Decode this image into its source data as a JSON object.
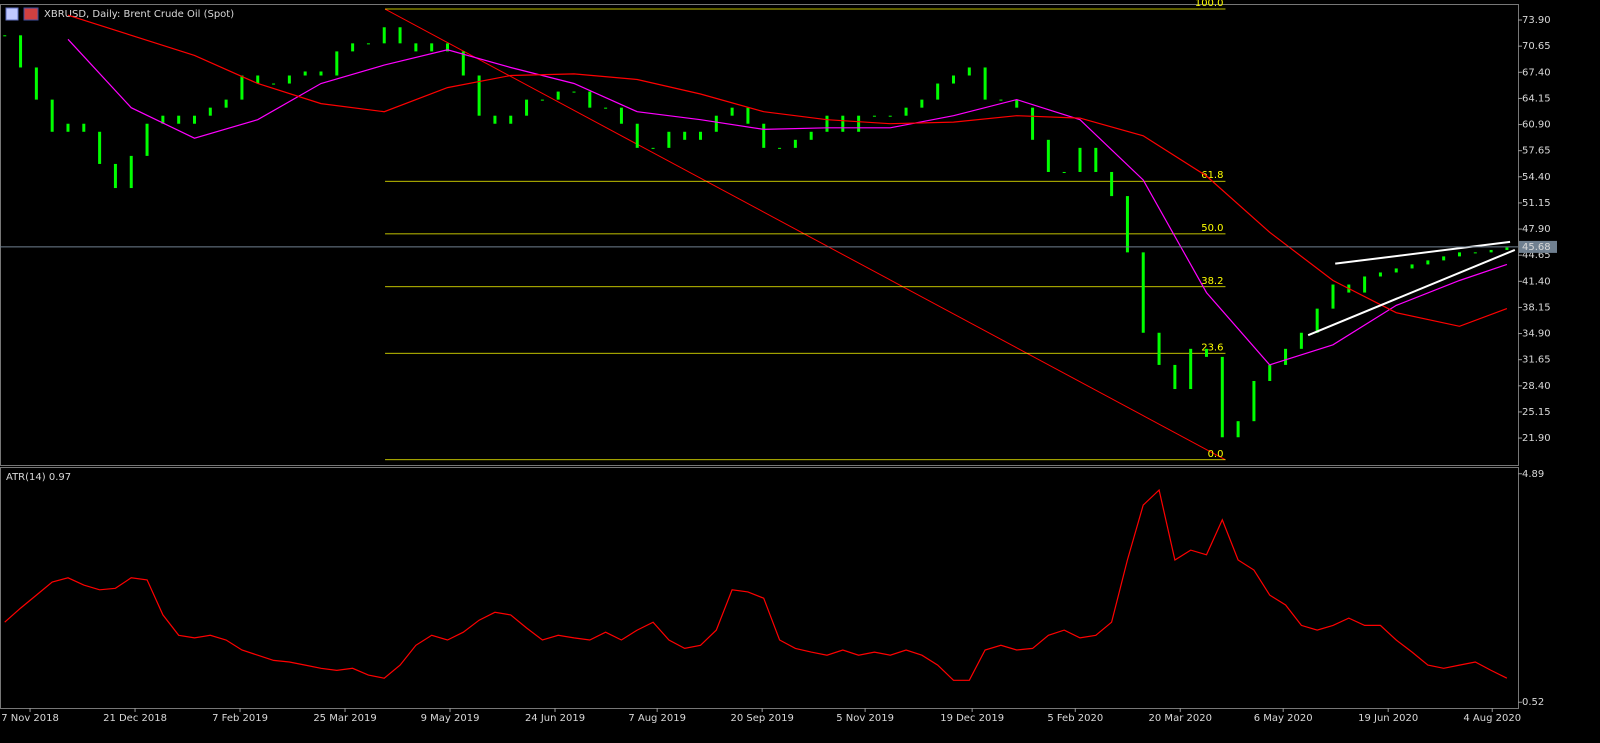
{
  "chart_data": [
    {
      "type": "candlestick",
      "title": "XBRUSD, Daily:  Brent Crude Oil (Spot)",
      "xlim": [
        -0.3,
        95.7
      ],
      "xticks": [
        {
          "value": 1.6,
          "label": "7 Nov 2018"
        },
        {
          "value": 8.24,
          "label": "21 Dec 2018"
        },
        {
          "value": 14.88,
          "label": "7 Feb 2019"
        },
        {
          "value": 21.52,
          "label": "25 Mar 2019"
        },
        {
          "value": 28.16,
          "label": "9 May 2019"
        },
        {
          "value": 34.8,
          "label": "24 Jun 2019"
        },
        {
          "value": 41.26,
          "label": "7 Aug 2019"
        },
        {
          "value": 47.9,
          "label": "20 Sep 2019"
        },
        {
          "value": 54.41,
          "label": "5 Nov 2019"
        },
        {
          "value": 61.18,
          "label": "19 Dec 2019"
        },
        {
          "value": 67.7,
          "label": "5 Feb 2020"
        },
        {
          "value": 74.34,
          "label": "20 Mar 2020"
        },
        {
          "value": 80.85,
          "label": "6 May 2020"
        },
        {
          "value": 87.49,
          "label": "19 Jun 2020"
        },
        {
          "value": 94.07,
          "label": "4 Aug 2020"
        }
      ],
      "ylim": [
        18.55,
        75.77
      ],
      "yticks": [
        {
          "value": 73.9,
          "label": "73.90"
        },
        {
          "value": 70.65,
          "label": "70.65"
        },
        {
          "value": 67.4,
          "label": "67.40"
        },
        {
          "value": 64.15,
          "label": "64.15"
        },
        {
          "value": 60.9,
          "label": "60.90"
        },
        {
          "value": 57.65,
          "label": "57.65"
        },
        {
          "value": 54.4,
          "label": "54.40"
        },
        {
          "value": 51.15,
          "label": "51.15"
        },
        {
          "value": 47.9,
          "label": "47.90"
        },
        {
          "value": 44.65,
          "label": "44.65"
        },
        {
          "value": 41.4,
          "label": "41.40"
        },
        {
          "value": 38.15,
          "label": "38.15"
        },
        {
          "value": 34.9,
          "label": "34.90"
        },
        {
          "value": 31.65,
          "label": "31.65"
        },
        {
          "value": 28.4,
          "label": "28.40"
        },
        {
          "value": 25.15,
          "label": "25.15"
        },
        {
          "value": 21.9,
          "label": "21.90"
        }
      ],
      "current_price": 45.68,
      "series": [
        {
          "color": "#00ff00",
          "values": [
            72,
            68,
            64,
            60,
            61,
            60,
            56,
            53,
            57,
            61,
            62,
            61,
            62,
            63,
            64,
            67,
            66,
            66,
            67,
            67.5,
            67,
            70,
            71,
            71,
            73,
            71,
            70,
            71,
            70,
            67,
            62,
            61,
            62,
            64,
            64,
            65,
            65,
            63,
            63,
            61,
            58,
            58,
            60,
            59,
            60,
            62,
            63,
            61,
            58,
            58,
            59,
            60,
            62,
            60,
            62,
            62,
            62,
            63,
            64,
            66,
            67,
            68,
            64,
            64,
            63,
            59,
            55,
            55,
            58,
            55,
            52,
            45,
            35,
            31,
            28,
            33,
            32,
            22,
            24,
            29,
            31,
            33,
            35,
            38,
            41,
            40,
            42,
            42.5,
            43,
            43.5,
            44,
            44.5,
            45,
            45,
            45.3,
            45.6
          ]
        },
        {
          "type": "line",
          "color": "#ff00ff",
          "x": [
            4,
            8,
            12,
            16,
            20,
            24,
            28,
            32,
            36,
            40,
            44,
            48,
            52,
            56,
            60,
            64,
            68,
            72,
            76,
            80,
            84,
            88,
            92,
            95
          ],
          "values": [
            71.5,
            63,
            59.2,
            61.5,
            66,
            68.3,
            70.2,
            68,
            66,
            62.5,
            61.5,
            60.3,
            60.5,
            60.5,
            62,
            64,
            61.5,
            54,
            40,
            31,
            33.5,
            38.4,
            41.5,
            43.5
          ]
        },
        {
          "type": "line",
          "color": "#ff0000",
          "x": [
            4,
            8,
            12,
            16,
            20,
            24,
            28,
            32,
            36,
            40,
            44,
            48,
            52,
            56,
            60,
            64,
            68,
            72,
            76,
            80,
            84,
            88,
            92,
            95
          ],
          "values": [
            74.5,
            72,
            69.5,
            66,
            63.5,
            62.5,
            65.5,
            67,
            67.2,
            66.5,
            64.7,
            62.5,
            61.5,
            61,
            61.2,
            62,
            61.7,
            59.5,
            54.5,
            47.5,
            41.5,
            37.5,
            35.8,
            38
          ]
        }
      ],
      "fibonacci": {
        "color": "#ffff00",
        "line_color": "#ff0000",
        "x": [
          24.05,
          77.2
        ],
        "levels": [
          {
            "value": 75.27,
            "label": "100.0"
          },
          {
            "value": 53.85,
            "label": "61.8"
          },
          {
            "value": 47.3,
            "label": "50.0"
          },
          {
            "value": 40.72,
            "label": "38.2"
          },
          {
            "value": 32.45,
            "label": "23.6"
          },
          {
            "value": 19.2,
            "label": "0.0"
          }
        ]
      },
      "trendlines": [
        {
          "color": "#ffffff",
          "x": [
            84.14,
            95.2
          ],
          "values": [
            43.6,
            46.3
          ]
        },
        {
          "color": "#ffffff",
          "x": [
            82.43,
            95.5
          ],
          "values": [
            34.7,
            45.3
          ]
        }
      ]
    },
    {
      "type": "line",
      "title": "ATR(14) 0.97",
      "xlim": [
        -0.3,
        95.7
      ],
      "ylim": [
        0.41,
        5.0
      ],
      "yticks": [
        4.89,
        0.52
      ],
      "series": [
        {
          "color": "#ff0000",
          "values": [
            2.05,
            2.32,
            2.57,
            2.82,
            2.9,
            2.76,
            2.67,
            2.7,
            2.9,
            2.86,
            2.19,
            1.8,
            1.75,
            1.8,
            1.71,
            1.52,
            1.42,
            1.32,
            1.29,
            1.23,
            1.17,
            1.13,
            1.17,
            1.04,
            0.98,
            1.23,
            1.61,
            1.8,
            1.71,
            1.86,
            2.09,
            2.24,
            2.19,
            1.94,
            1.71,
            1.8,
            1.75,
            1.71,
            1.86,
            1.71,
            1.9,
            2.05,
            1.71,
            1.55,
            1.61,
            1.9,
            2.67,
            2.63,
            2.51,
            1.71,
            1.55,
            1.48,
            1.42,
            1.52,
            1.42,
            1.48,
            1.42,
            1.52,
            1.42,
            1.23,
            0.94,
            0.94,
            1.52,
            1.61,
            1.52,
            1.55,
            1.8,
            1.9,
            1.75,
            1.8,
            2.05,
            3.24,
            4.29,
            4.58,
            3.24,
            3.43,
            3.34,
            4.01,
            3.24,
            3.05,
            2.57,
            2.38,
            1.99,
            1.9,
            1.99,
            2.13,
            1.99,
            1.99,
            1.71,
            1.48,
            1.23,
            1.17,
            1.23,
            1.29,
            1.13,
            0.98
          ]
        }
      ]
    }
  ]
}
